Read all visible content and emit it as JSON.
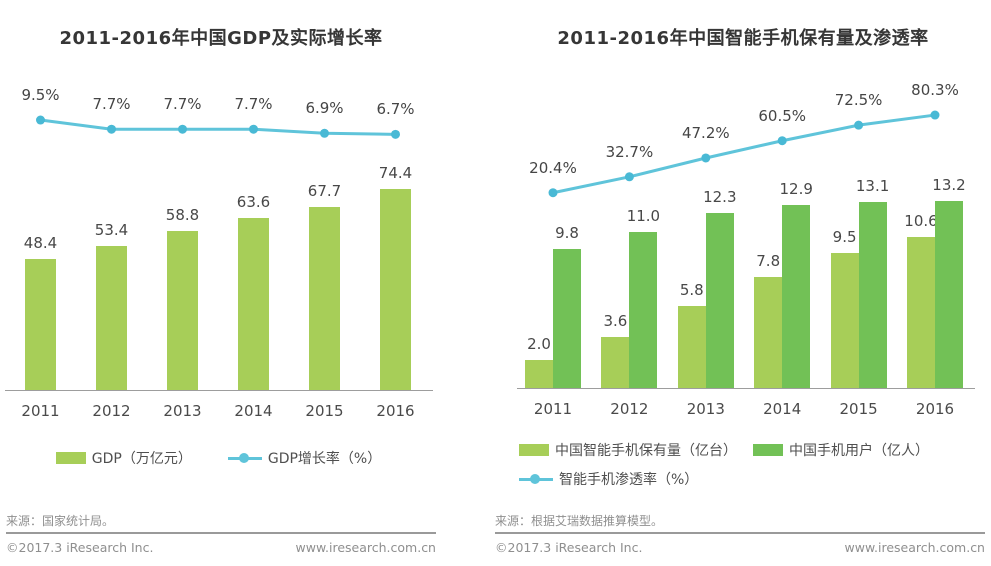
{
  "footer": {
    "left": "©2017.3 iResearch Inc.",
    "right": "www.iresearch.com.cn"
  },
  "colors": {
    "bar_light_green": "#a7ce58",
    "bar_dark_green": "#72c156",
    "line_blue": "#5fc4da",
    "dot_blue": "#49b9d5"
  },
  "chart_data": [
    {
      "type": "bar+line",
      "title": "2011-2016年中国GDP及实际增长率",
      "source": "来源：国家统计局。",
      "categories": [
        "2011",
        "2012",
        "2013",
        "2014",
        "2015",
        "2016"
      ],
      "series": [
        {
          "name": "GDP（万亿元）",
          "type": "bar",
          "color": "#a7ce58",
          "values": [
            48.4,
            53.4,
            58.8,
            63.6,
            67.7,
            74.4
          ]
        },
        {
          "name": "GDP增长率（%）",
          "type": "line",
          "color": "#5fc4da",
          "dot_color": "#49b9d5",
          "values": [
            9.5,
            7.7,
            7.7,
            7.7,
            6.9,
            6.7
          ],
          "labels": [
            "9.5%",
            "7.7%",
            "7.7%",
            "7.7%",
            "6.9%",
            "6.7%"
          ]
        }
      ],
      "grid": false,
      "value_axis_visible": false,
      "legend_position": "bottom"
    },
    {
      "type": "bar+line",
      "title": "2011-2016年中国智能手机保有量及渗透率",
      "source": "来源：根据艾瑞数据推算模型。",
      "categories": [
        "2011",
        "2012",
        "2013",
        "2014",
        "2015",
        "2016"
      ],
      "series": [
        {
          "name": "中国智能手机保有量（亿台）",
          "type": "bar",
          "color": "#a7ce58",
          "values": [
            2.0,
            3.6,
            5.8,
            7.8,
            9.5,
            10.6
          ]
        },
        {
          "name": "中国手机用户（亿人）",
          "type": "bar",
          "color": "#72c156",
          "values": [
            9.8,
            11.0,
            12.3,
            12.9,
            13.1,
            13.2
          ]
        },
        {
          "name": "智能手机渗透率（%）",
          "type": "line",
          "color": "#5fc4da",
          "dot_color": "#49b9d5",
          "values": [
            20.4,
            32.7,
            47.2,
            60.5,
            72.5,
            80.3
          ],
          "labels": [
            "20.4%",
            "32.7%",
            "47.2%",
            "60.5%",
            "72.5%",
            "80.3%"
          ]
        }
      ],
      "grid": false,
      "value_axis_visible": false,
      "legend_position": "bottom"
    }
  ]
}
